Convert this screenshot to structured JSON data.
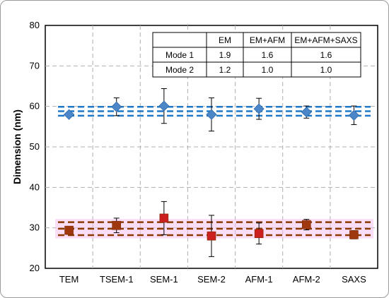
{
  "chart_data": {
    "type": "scatter",
    "title": "",
    "xlabel": "",
    "ylabel": "Dimension (nm)",
    "categories": [
      "TEM",
      "TSEM-1",
      "SEM-1",
      "SEM-2",
      "AFM-1",
      "AFM-2",
      "SAXS"
    ],
    "ylim": [
      20,
      80
    ],
    "yticks": [
      20,
      30,
      40,
      50,
      60,
      70,
      80
    ],
    "grid": true,
    "series": [
      {
        "color": "#4a86c8",
        "marker": "diamond",
        "values": [
          58.0,
          59.9,
          60.1,
          58.0,
          59.4,
          58.6,
          57.8
        ],
        "errors": [
          0.5,
          2.2,
          4.3,
          4.1,
          2.6,
          1.5,
          2.3
        ],
        "band": {
          "center": 58.8,
          "half_width": 1.1,
          "style": "dashed",
          "color": "#1f78c8"
        }
      },
      {
        "color": "#cc1f1f",
        "marker": "square",
        "values": [
          29.4,
          30.6,
          32.4,
          28.0,
          28.6,
          30.8,
          28.3
        ],
        "errors": [
          0.9,
          1.8,
          4.1,
          5.1,
          2.6,
          1.3,
          1.0
        ],
        "band": {
          "center": 29.8,
          "half_width": 1.6,
          "style": "dashed",
          "color": "#8b3a00",
          "highlight": "#f6c1ee"
        }
      }
    ],
    "table": {
      "headers": [
        "",
        "EM",
        "EM+AFM",
        "EM+AFM+SAXS"
      ],
      "rows": [
        [
          "Mode 1",
          "1.9",
          "1.6",
          "1.6"
        ],
        [
          "Mode 2",
          "1.2",
          "1.0",
          "1.0"
        ]
      ]
    }
  }
}
